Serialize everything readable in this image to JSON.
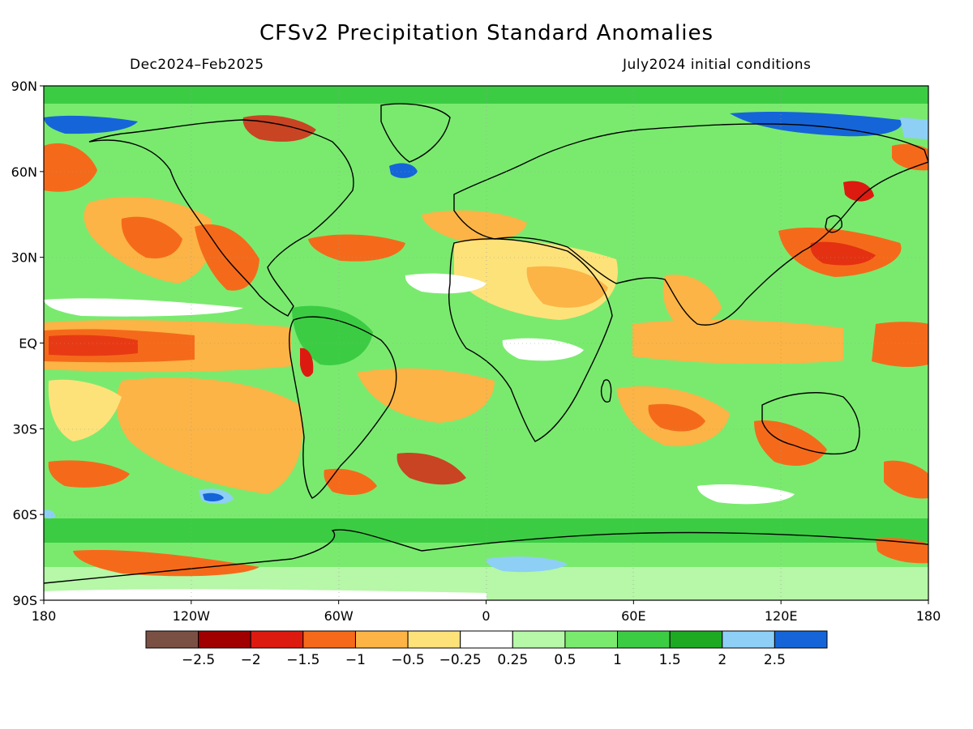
{
  "title": "CFSv2 Precipitation Standard Anomalies",
  "subtitle_left": "Dec2024–Feb2025",
  "subtitle_right": "July2024 initial conditions",
  "lat_labels": [
    {
      "lat": 90,
      "label": "90N"
    },
    {
      "lat": 60,
      "label": "60N"
    },
    {
      "lat": 30,
      "label": "30N"
    },
    {
      "lat": 0,
      "label": "EQ"
    },
    {
      "lat": -30,
      "label": "30S"
    },
    {
      "lat": -60,
      "label": "60S"
    },
    {
      "lat": -90,
      "label": "90S"
    }
  ],
  "lon_labels": [
    {
      "lon": -180,
      "label": "180"
    },
    {
      "lon": -120,
      "label": "120W"
    },
    {
      "lon": -60,
      "label": "60W"
    },
    {
      "lon": 0,
      "label": "0"
    },
    {
      "lon": 60,
      "label": "60E"
    },
    {
      "lon": 120,
      "label": "120E"
    },
    {
      "lon": 180,
      "label": "180"
    }
  ],
  "legend": {
    "colors": [
      "#7a5045",
      "#a00000",
      "#dd1a10",
      "#f56a1a",
      "#fbb445",
      "#fde27a",
      "#ffffff",
      "#b6f7a8",
      "#7aea6f",
      "#3ccc44",
      "#1ea923",
      "#8ecff6",
      "#1565d8"
    ],
    "labels": [
      "−2.5",
      "−2",
      "−1.5",
      "−1",
      "−0.5",
      "−0.25",
      "0.25",
      "0.5",
      "1",
      "1.5",
      "2",
      "2.5"
    ]
  },
  "map_colors": {
    "ocean_base": "#7aea6f",
    "land_outline": "#000000"
  }
}
